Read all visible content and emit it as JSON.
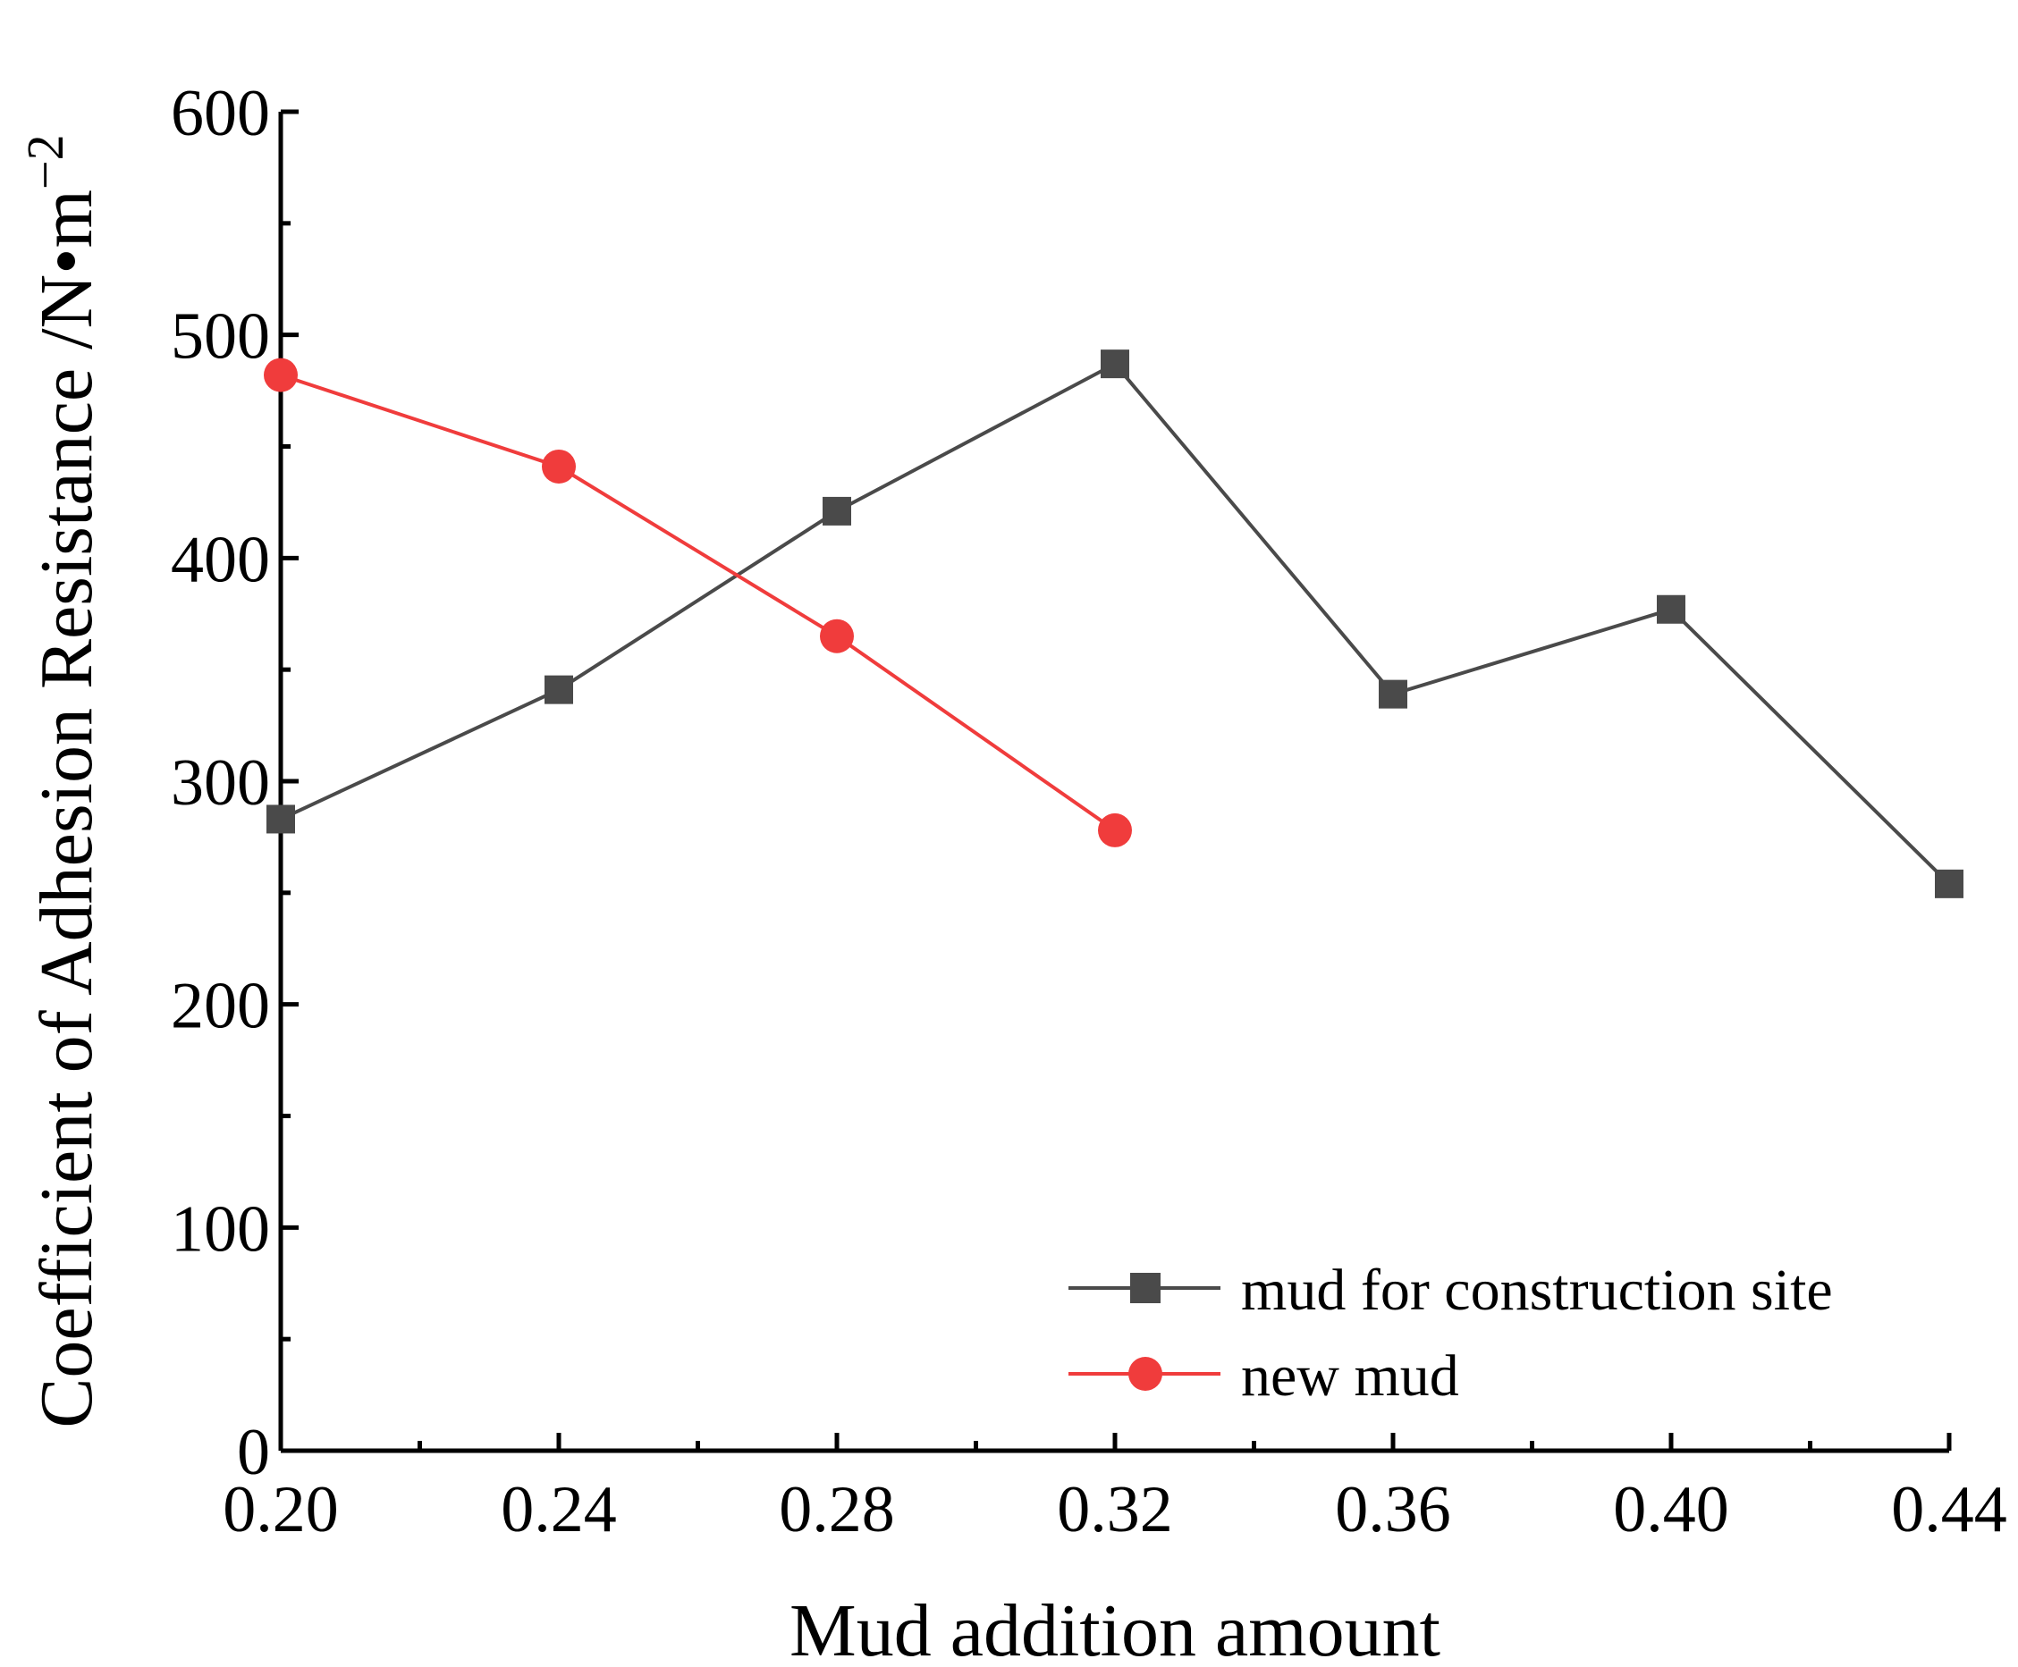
{
  "chart_data": {
    "type": "line",
    "title": "",
    "xlabel": "Mud addition amount",
    "ylabel": "Coefficient of Adhesion Resistance /N•m",
    "ylabel_sup": "−2",
    "xlim": [
      0.2,
      0.44
    ],
    "ylim": [
      0,
      600
    ],
    "xticks": [
      "0.20",
      "0.24",
      "0.28",
      "0.32",
      "0.36",
      "0.40",
      "0.44"
    ],
    "yticks": [
      "0",
      "100",
      "200",
      "300",
      "400",
      "500",
      "600"
    ],
    "grid": false,
    "legend_position": "bottom-right",
    "series": [
      {
        "name": "mud for construction site",
        "color": "#4a4a4a",
        "marker": "square",
        "x": [
          0.2,
          0.24,
          0.28,
          0.32,
          0.36,
          0.4,
          0.44
        ],
        "y": [
          283,
          341,
          421,
          487,
          339,
          377,
          254
        ]
      },
      {
        "name": "new mud",
        "color": "#f03c3c",
        "marker": "circle",
        "x": [
          0.2,
          0.24,
          0.28,
          0.32
        ],
        "y": [
          482,
          441,
          365,
          278
        ]
      }
    ]
  }
}
